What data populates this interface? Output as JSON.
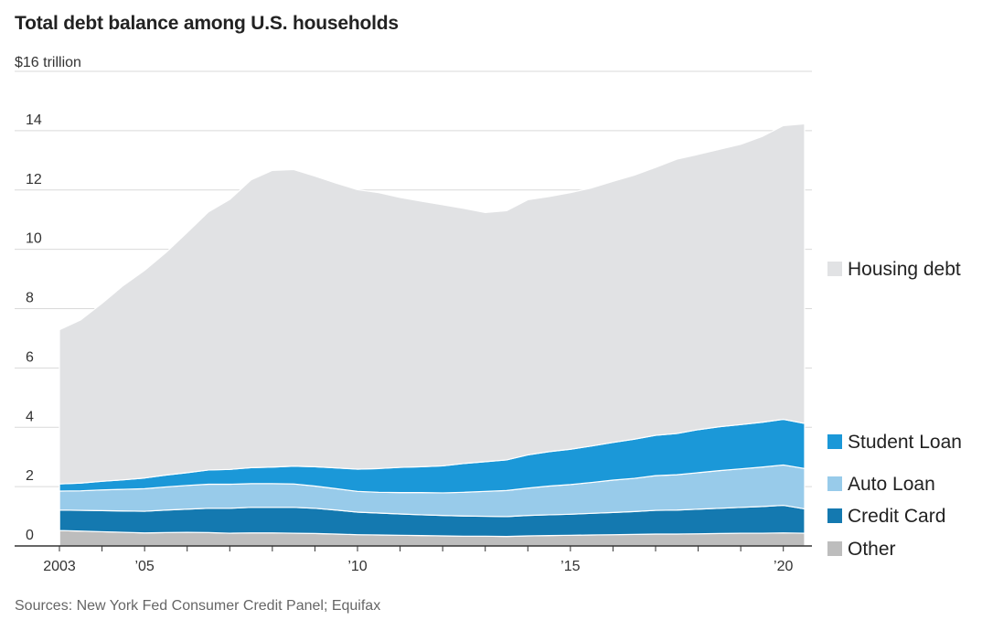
{
  "title": "Total debt balance among U.S. households",
  "unit_label": "$16 trillion",
  "source": "Sources: New York Fed Consumer Credit Panel; Equifax",
  "colors": {
    "housing": "#e1e2e4",
    "student": "#1b98d8",
    "auto": "#98cbea",
    "credit": "#1479b0",
    "other": "#bdbdbd",
    "grid": "#d9d9d9",
    "axis": "#333333"
  },
  "chart_data": {
    "type": "area",
    "stacked": true,
    "title": "Total debt balance among U.S. households",
    "ylabel": "$16 trillion",
    "ylim": [
      0,
      16
    ],
    "xlim": [
      2003.0,
      2020.5
    ],
    "y_ticks": [
      {
        "value": 0,
        "label": "0"
      },
      {
        "value": 2,
        "label": "2"
      },
      {
        "value": 4,
        "label": "4"
      },
      {
        "value": 6,
        "label": "6"
      },
      {
        "value": 8,
        "label": "8"
      },
      {
        "value": 10,
        "label": "10"
      },
      {
        "value": 12,
        "label": "12"
      },
      {
        "value": 14,
        "label": "14"
      },
      {
        "value": 16,
        "label": ""
      }
    ],
    "x_ticks": [
      {
        "value": 2003,
        "label": "2003"
      },
      {
        "value": 2004,
        "label": ""
      },
      {
        "value": 2005,
        "label": "’05"
      },
      {
        "value": 2006,
        "label": ""
      },
      {
        "value": 2007,
        "label": ""
      },
      {
        "value": 2008,
        "label": ""
      },
      {
        "value": 2009,
        "label": ""
      },
      {
        "value": 2010,
        "label": "’10"
      },
      {
        "value": 2011,
        "label": ""
      },
      {
        "value": 2012,
        "label": ""
      },
      {
        "value": 2013,
        "label": ""
      },
      {
        "value": 2014,
        "label": ""
      },
      {
        "value": 2015,
        "label": "’15"
      },
      {
        "value": 2016,
        "label": ""
      },
      {
        "value": 2017,
        "label": ""
      },
      {
        "value": 2018,
        "label": ""
      },
      {
        "value": 2019,
        "label": ""
      },
      {
        "value": 2020,
        "label": "’20"
      }
    ],
    "x": [
      2003.0,
      2003.5,
      2004.0,
      2004.5,
      2005.0,
      2005.5,
      2006.0,
      2006.5,
      2007.0,
      2007.5,
      2008.0,
      2008.5,
      2009.0,
      2009.5,
      2010.0,
      2010.5,
      2011.0,
      2011.5,
      2012.0,
      2012.5,
      2013.0,
      2013.5,
      2014.0,
      2014.5,
      2015.0,
      2015.5,
      2016.0,
      2016.5,
      2017.0,
      2017.5,
      2018.0,
      2018.5,
      2019.0,
      2019.5,
      2020.0,
      2020.5
    ],
    "series": [
      {
        "name": "Other",
        "color_key": "other",
        "values": [
          0.52,
          0.5,
          0.48,
          0.46,
          0.44,
          0.45,
          0.46,
          0.45,
          0.43,
          0.44,
          0.44,
          0.43,
          0.42,
          0.4,
          0.38,
          0.37,
          0.36,
          0.35,
          0.34,
          0.33,
          0.33,
          0.32,
          0.34,
          0.35,
          0.36,
          0.37,
          0.38,
          0.39,
          0.4,
          0.4,
          0.41,
          0.42,
          0.43,
          0.43,
          0.44,
          0.43
        ]
      },
      {
        "name": "Credit Card",
        "color_key": "credit",
        "values": [
          0.69,
          0.7,
          0.71,
          0.72,
          0.73,
          0.76,
          0.78,
          0.82,
          0.84,
          0.86,
          0.86,
          0.87,
          0.85,
          0.81,
          0.76,
          0.74,
          0.72,
          0.7,
          0.69,
          0.68,
          0.67,
          0.67,
          0.69,
          0.7,
          0.71,
          0.73,
          0.75,
          0.77,
          0.8,
          0.81,
          0.83,
          0.85,
          0.87,
          0.9,
          0.93,
          0.82
        ]
      },
      {
        "name": "Auto Loan",
        "color_key": "auto",
        "values": [
          0.64,
          0.66,
          0.7,
          0.73,
          0.76,
          0.78,
          0.8,
          0.81,
          0.81,
          0.8,
          0.8,
          0.79,
          0.75,
          0.72,
          0.7,
          0.7,
          0.72,
          0.75,
          0.76,
          0.8,
          0.84,
          0.88,
          0.92,
          0.97,
          1.0,
          1.04,
          1.09,
          1.12,
          1.17,
          1.19,
          1.23,
          1.27,
          1.3,
          1.33,
          1.36,
          1.36
        ]
      },
      {
        "name": "Student Loan",
        "color_key": "student",
        "values": [
          0.24,
          0.26,
          0.29,
          0.32,
          0.36,
          0.4,
          0.43,
          0.48,
          0.5,
          0.54,
          0.56,
          0.6,
          0.65,
          0.7,
          0.75,
          0.8,
          0.85,
          0.87,
          0.91,
          0.97,
          1.0,
          1.03,
          1.12,
          1.16,
          1.19,
          1.23,
          1.27,
          1.32,
          1.36,
          1.39,
          1.45,
          1.48,
          1.49,
          1.51,
          1.54,
          1.52
        ]
      },
      {
        "name": "Housing debt",
        "color_key": "housing",
        "values": [
          5.2,
          5.5,
          6.0,
          6.55,
          7.0,
          7.5,
          8.1,
          8.7,
          9.1,
          9.7,
          10.0,
          10.0,
          9.8,
          9.6,
          9.42,
          9.3,
          9.1,
          8.95,
          8.8,
          8.6,
          8.4,
          8.4,
          8.6,
          8.6,
          8.65,
          8.7,
          8.8,
          8.9,
          9.03,
          9.25,
          9.28,
          9.35,
          9.45,
          9.63,
          9.9,
          10.1
        ]
      }
    ],
    "legend": {
      "placement": "right",
      "items": [
        "Housing debt",
        "Student Loan",
        "Auto Loan",
        "Credit Card",
        "Other"
      ]
    },
    "grid": true
  }
}
